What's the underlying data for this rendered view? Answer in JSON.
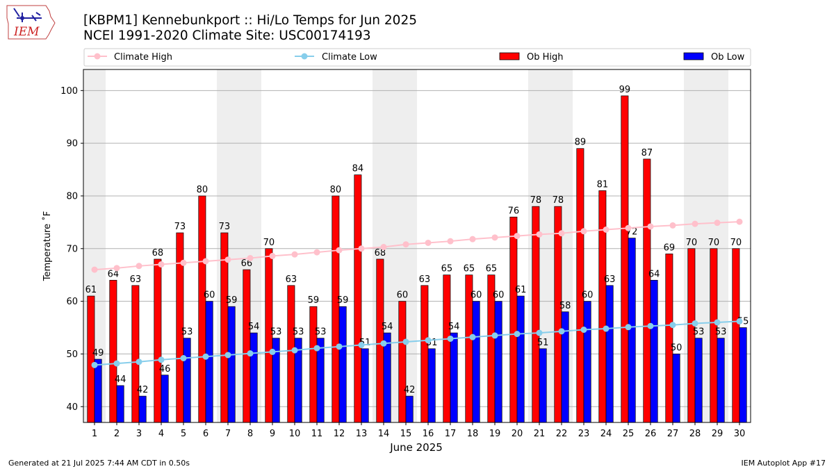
{
  "header": {
    "title": "[KBPM1] Kennebunkport :: Hi/Lo Temps for Jun 2025",
    "subtitle": "NCEI 1991-2020 Climate Site: USC00174193"
  },
  "logo": {
    "text": "IEM"
  },
  "footer": {
    "left": "Generated at 21 Jul 2025 7:44 AM CDT in 0.50s",
    "right": "IEM Autoplot App #17"
  },
  "chart_data": {
    "type": "bar",
    "xlabel": "June 2025",
    "ylabel": "Temperature ˚F",
    "ylim": [
      37,
      104
    ],
    "yticks": [
      40,
      50,
      60,
      70,
      80,
      90,
      100
    ],
    "grid": true,
    "legend_position": "top",
    "weekend_days": [
      1,
      7,
      8,
      14,
      15,
      21,
      22,
      28,
      29
    ],
    "categories": [
      1,
      2,
      3,
      4,
      5,
      6,
      7,
      8,
      9,
      10,
      11,
      12,
      13,
      14,
      15,
      16,
      17,
      18,
      19,
      20,
      21,
      22,
      23,
      24,
      25,
      26,
      27,
      28,
      29,
      30
    ],
    "series": [
      {
        "name": "Ob High",
        "kind": "bar",
        "color": "#ff0000",
        "values": [
          61,
          64,
          63,
          68,
          73,
          80,
          73,
          66,
          70,
          63,
          59,
          80,
          84,
          68,
          60,
          63,
          65,
          65,
          65,
          76,
          78,
          78,
          89,
          81,
          99,
          87,
          69,
          70,
          70,
          70
        ]
      },
      {
        "name": "Ob Low",
        "kind": "bar",
        "color": "#0000ff",
        "values": [
          49,
          44,
          42,
          46,
          53,
          60,
          59,
          54,
          53,
          53,
          53,
          59,
          51,
          54,
          42,
          51,
          54,
          60,
          60,
          61,
          51,
          58,
          60,
          63,
          72,
          64,
          50,
          53,
          53,
          55
        ]
      },
      {
        "name": "Climate High",
        "kind": "line",
        "color": "#ffc0cb",
        "values": [
          66.0,
          66.3,
          66.7,
          67.0,
          67.3,
          67.6,
          67.9,
          68.2,
          68.6,
          68.9,
          69.3,
          69.7,
          70.0,
          70.3,
          70.8,
          71.1,
          71.4,
          71.8,
          72.1,
          72.4,
          72.7,
          72.9,
          73.3,
          73.6,
          73.9,
          74.2,
          74.4,
          74.7,
          74.9,
          75.1
        ]
      },
      {
        "name": "Climate Low",
        "kind": "line",
        "color": "#87ceeb",
        "values": [
          47.9,
          48.2,
          48.5,
          48.9,
          49.2,
          49.5,
          49.8,
          50.1,
          50.4,
          50.7,
          51.1,
          51.4,
          51.7,
          52.0,
          52.3,
          52.6,
          52.9,
          53.2,
          53.5,
          53.8,
          54.0,
          54.3,
          54.6,
          54.8,
          55.1,
          55.3,
          55.5,
          55.8,
          56.0,
          56.2
        ]
      }
    ],
    "legend": [
      {
        "label": "Climate High",
        "marker": "line",
        "color": "#ffc0cb"
      },
      {
        "label": "Climate Low",
        "marker": "line",
        "color": "#87ceeb"
      },
      {
        "label": "Ob High",
        "marker": "patch",
        "color": "#ff0000"
      },
      {
        "label": "Ob Low",
        "marker": "patch",
        "color": "#0000ff"
      }
    ]
  }
}
